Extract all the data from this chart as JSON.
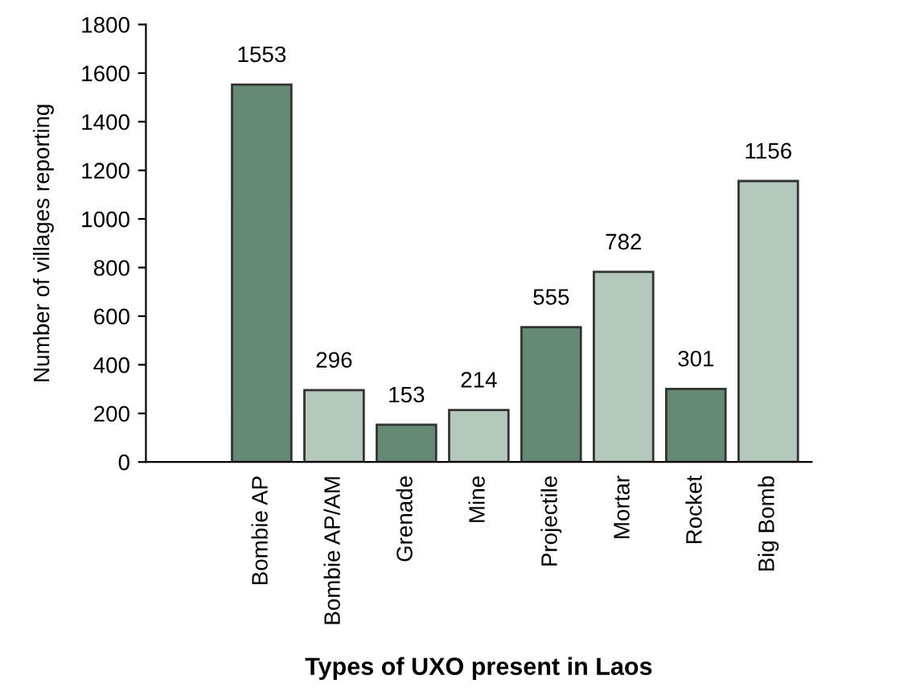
{
  "chart_data": {
    "type": "bar",
    "xlabel": "Types of UXO present in Laos",
    "ylabel": "Number of villages reporting",
    "categories": [
      "Bombie AP",
      "Bombie AP/AM",
      "Grenade",
      "Mine",
      "Projectile",
      "Mortar",
      "Rocket",
      "Big Bomb"
    ],
    "values": [
      1553,
      296,
      153,
      214,
      555,
      782,
      301,
      1156
    ],
    "colors": [
      "#648a76",
      "#b5c8bc",
      "#648a76",
      "#b5c8bc",
      "#648a76",
      "#b5c8bc",
      "#648a76",
      "#b5c8bc"
    ],
    "ylim": [
      0,
      1800
    ],
    "yticks": [
      0,
      200,
      400,
      600,
      800,
      1000,
      1200,
      1400,
      1600,
      1800
    ],
    "data_labels": true,
    "grid": false,
    "legend": false
  }
}
